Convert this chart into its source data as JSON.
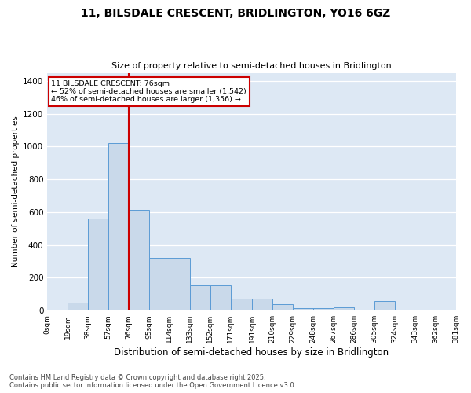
{
  "title_line1": "11, BILSDALE CRESCENT, BRIDLINGTON, YO16 6GZ",
  "title_line2": "Size of property relative to semi-detached houses in Bridlington",
  "xlabel": "Distribution of semi-detached houses by size in Bridlington",
  "ylabel": "Number of semi-detached properties",
  "footnote": "Contains HM Land Registry data © Crown copyright and database right 2025.\nContains public sector information licensed under the Open Government Licence v3.0.",
  "annotation_title": "11 BILSDALE CRESCENT: 76sqm",
  "annotation_line2": "← 52% of semi-detached houses are smaller (1,542)",
  "annotation_line3": "46% of semi-detached houses are larger (1,356) →",
  "property_size": 76,
  "bin_edges": [
    0,
    19,
    38,
    57,
    76,
    95,
    114,
    133,
    152,
    171,
    191,
    210,
    229,
    248,
    267,
    286,
    305,
    324,
    343,
    362,
    381
  ],
  "bin_labels": [
    "0sqm",
    "19sqm",
    "38sqm",
    "57sqm",
    "76sqm",
    "95sqm",
    "114sqm",
    "133sqm",
    "152sqm",
    "171sqm",
    "191sqm",
    "210sqm",
    "229sqm",
    "248sqm",
    "267sqm",
    "286sqm",
    "305sqm",
    "324sqm",
    "343sqm",
    "362sqm",
    "381sqm"
  ],
  "counts": [
    0,
    50,
    560,
    1020,
    615,
    320,
    320,
    155,
    155,
    75,
    75,
    40,
    15,
    15,
    20,
    0,
    60,
    5,
    0,
    0,
    0
  ],
  "bar_color": "#c9d9ea",
  "bar_edge_color": "#5b9bd5",
  "vline_color": "#cc0000",
  "vline_x": 76,
  "annotation_box_color": "#cc0000",
  "background_color": "#dde8f4",
  "ylim": [
    0,
    1450
  ],
  "yticks": [
    0,
    200,
    400,
    600,
    800,
    1000,
    1200,
    1400
  ],
  "fig_width": 6.0,
  "fig_height": 5.0,
  "dpi": 100
}
